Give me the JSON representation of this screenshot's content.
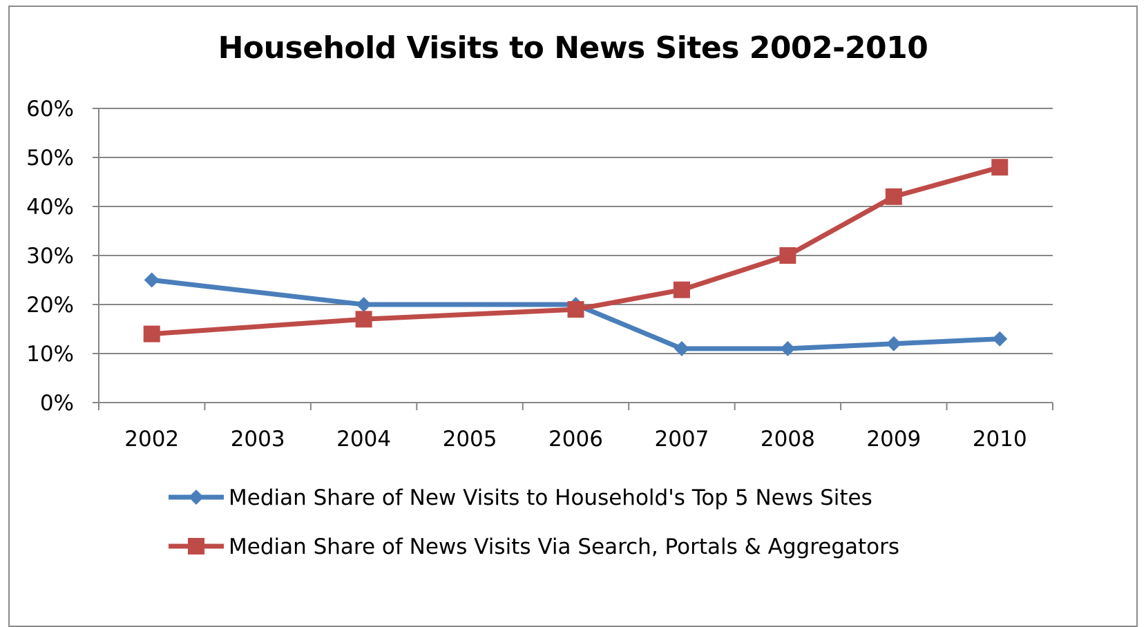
{
  "chart_data": {
    "type": "line",
    "title": "Household Visits to News Sites 2002-2010",
    "categories": [
      "2002",
      "2003",
      "2004",
      "2005",
      "2006",
      "2007",
      "2008",
      "2009",
      "2010"
    ],
    "series": [
      {
        "name": "Median Share of New Visits to Household's Top 5 News Sites",
        "color": "#4a7ebb",
        "marker": "diamond",
        "points": [
          {
            "x": "2002",
            "y": 25
          },
          {
            "x": "2004",
            "y": 20
          },
          {
            "x": "2006",
            "y": 20
          },
          {
            "x": "2007",
            "y": 11
          },
          {
            "x": "2008",
            "y": 11
          },
          {
            "x": "2009",
            "y": 12
          },
          {
            "x": "2010",
            "y": 13
          }
        ]
      },
      {
        "name": "Median Share of News Visits Via Search, Portals & Aggregators",
        "color": "#be4b48",
        "marker": "square",
        "points": [
          {
            "x": "2002",
            "y": 14
          },
          {
            "x": "2004",
            "y": 17
          },
          {
            "x": "2006",
            "y": 19
          },
          {
            "x": "2007",
            "y": 23
          },
          {
            "x": "2008",
            "y": 30
          },
          {
            "x": "2009",
            "y": 42
          },
          {
            "x": "2010",
            "y": 48
          }
        ]
      }
    ],
    "yticks": [
      "0%",
      "10%",
      "20%",
      "30%",
      "40%",
      "50%",
      "60%"
    ],
    "ylim": [
      0,
      60
    ],
    "grid": true,
    "legend_position": "bottom"
  }
}
